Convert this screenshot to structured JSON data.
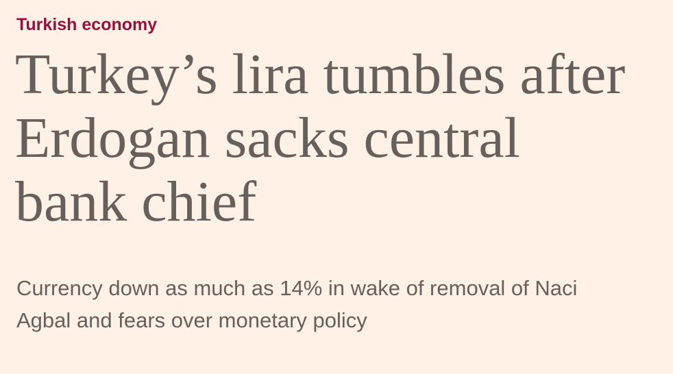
{
  "article": {
    "section": "Turkish economy",
    "headline_lines": [
      "Turkey’s lira tumbles after",
      "Erdogan sacks central",
      "bank chief"
    ],
    "standfirst_lines": [
      "Currency down as much as 14% in wake of removal of Naci",
      "Agbal and fears over monetary policy"
    ]
  }
}
